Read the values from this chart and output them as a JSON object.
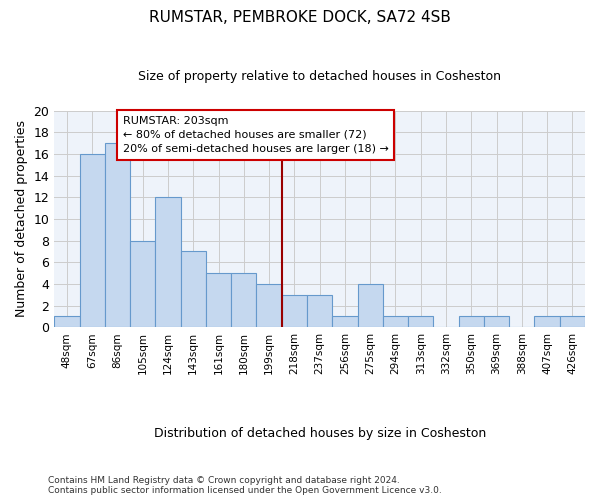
{
  "title": "RUMSTAR, PEMBROKE DOCK, SA72 4SB",
  "subtitle": "Size of property relative to detached houses in Cosheston",
  "xlabel": "Distribution of detached houses by size in Cosheston",
  "ylabel": "Number of detached properties",
  "bar_color": "#c5d8ef",
  "bar_edge_color": "#6699cc",
  "categories": [
    "48sqm",
    "67sqm",
    "86sqm",
    "105sqm",
    "124sqm",
    "143sqm",
    "161sqm",
    "180sqm",
    "199sqm",
    "218sqm",
    "237sqm",
    "256sqm",
    "275sqm",
    "294sqm",
    "313sqm",
    "332sqm",
    "350sqm",
    "369sqm",
    "388sqm",
    "407sqm",
    "426sqm"
  ],
  "values": [
    1,
    16,
    17,
    8,
    12,
    7,
    5,
    5,
    4,
    3,
    3,
    1,
    4,
    1,
    1,
    0,
    1,
    1,
    0,
    1,
    1
  ],
  "ylim": [
    0,
    20
  ],
  "yticks": [
    0,
    2,
    4,
    6,
    8,
    10,
    12,
    14,
    16,
    18,
    20
  ],
  "annotation_text": "RUMSTAR: 203sqm\n← 80% of detached houses are smaller (72)\n20% of semi-detached houses are larger (18) →",
  "annotation_box_color": "#ffffff",
  "annotation_box_edge": "#cc0000",
  "vline_color": "#990000",
  "vline_x_index": 8.5,
  "background_color": "#ffffff",
  "grid_color": "#cccccc",
  "footer": "Contains HM Land Registry data © Crown copyright and database right 2024.\nContains public sector information licensed under the Open Government Licence v3.0."
}
